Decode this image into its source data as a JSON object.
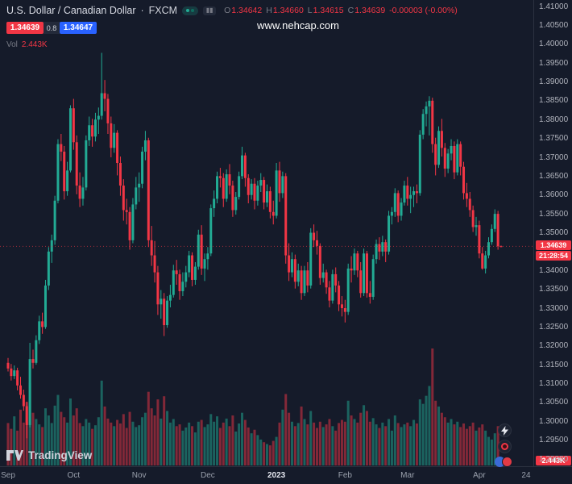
{
  "header": {
    "symbol_title": "U.S. Dollar / Canadian Dollar",
    "separator": "·",
    "exchange": "FXCM",
    "ohlc": {
      "o_label": "O",
      "o_value": "1.34642",
      "h_label": "H",
      "h_value": "1.34660",
      "l_label": "L",
      "l_value": "1.34615",
      "c_label": "C",
      "c_value": "1.34639",
      "change": "-0.00003 (-0.00%)"
    },
    "bid": "1.34639",
    "spread": "0.8",
    "ask": "1.34647",
    "vol_label": "Vol",
    "vol_value": "2.443K"
  },
  "watermark": "www.nehcap.com",
  "price_axis": {
    "ticks": [
      "1.41000",
      "1.40500",
      "1.40000",
      "1.39500",
      "1.39000",
      "1.38500",
      "1.38000",
      "1.37500",
      "1.37000",
      "1.36500",
      "1.36000",
      "1.35500",
      "1.35000",
      "1.34000",
      "1.33500",
      "1.33000",
      "1.32500",
      "1.32000",
      "1.31500",
      "1.31000",
      "1.30500",
      "1.30000",
      "1.29500",
      "1.29000"
    ],
    "last_price_label": "1.34639",
    "countdown": "21:28:54",
    "volume_badge": "2.443K"
  },
  "time_axis": {
    "ticks": [
      {
        "label": "Sep",
        "index": 0,
        "major": false
      },
      {
        "label": "Oct",
        "index": 21,
        "major": false
      },
      {
        "label": "Nov",
        "index": 42,
        "major": false
      },
      {
        "label": "Dec",
        "index": 64,
        "major": false
      },
      {
        "label": "2023",
        "index": 86,
        "major": true
      },
      {
        "label": "Feb",
        "index": 108,
        "major": false
      },
      {
        "label": "Mar",
        "index": 128,
        "major": false
      },
      {
        "label": "Apr",
        "index": 151,
        "major": false
      },
      {
        "label": "24",
        "index": 166,
        "major": false
      }
    ]
  },
  "footer": {
    "logo_text": "TradingView"
  },
  "colors": {
    "bg": "#151b2a",
    "up": "#22ab94",
    "down": "#f23645",
    "vol_up": "rgba(34,171,148,0.5)",
    "vol_down": "rgba(242,54,69,0.5)",
    "buy": "#2962ff",
    "sell": "#f23645"
  },
  "chart_data": {
    "type": "candlestick+volume",
    "title": "U.S. Dollar / Canadian Dollar · FXCM",
    "symbol": "USDCAD",
    "timeframe": "1D",
    "date_range": "Sep 2022 - Apr 2023",
    "ylim": [
      1.2883,
      1.41
    ],
    "price_step": 0.005,
    "last_price": 1.34639,
    "last_volume_k": 2.443,
    "candles_format": [
      "open",
      "high",
      "low",
      "close"
    ],
    "candles": [
      [
        1.3155,
        1.3168,
        1.3132,
        1.314
      ],
      [
        1.314,
        1.3152,
        1.3108,
        1.312
      ],
      [
        1.312,
        1.3148,
        1.3112,
        1.3135
      ],
      [
        1.3135,
        1.3142,
        1.3082,
        1.3095
      ],
      [
        1.3095,
        1.3118,
        1.306,
        1.307
      ],
      [
        1.307,
        1.3084,
        1.3028,
        1.304
      ],
      [
        1.304,
        1.3052,
        1.2955,
        1.299
      ],
      [
        1.299,
        1.3208,
        1.2984,
        1.3165
      ],
      [
        1.3165,
        1.319,
        1.314,
        1.3155
      ],
      [
        1.3155,
        1.3228,
        1.315,
        1.3215
      ],
      [
        1.3215,
        1.328,
        1.3205,
        1.3265
      ],
      [
        1.3265,
        1.3288,
        1.3232,
        1.325
      ],
      [
        1.325,
        1.3375,
        1.3245,
        1.336
      ],
      [
        1.336,
        1.3462,
        1.3348,
        1.345
      ],
      [
        1.345,
        1.3495,
        1.342,
        1.348
      ],
      [
        1.348,
        1.3598,
        1.3468,
        1.3585
      ],
      [
        1.3585,
        1.3748,
        1.3578,
        1.3735
      ],
      [
        1.3735,
        1.3762,
        1.369,
        1.3715
      ],
      [
        1.3715,
        1.373,
        1.3588,
        1.361
      ],
      [
        1.361,
        1.3688,
        1.3598,
        1.3665
      ],
      [
        1.3665,
        1.3838,
        1.366,
        1.383
      ],
      [
        1.383,
        1.3855,
        1.372,
        1.374
      ],
      [
        1.374,
        1.3758,
        1.3602,
        1.3625
      ],
      [
        1.3625,
        1.366,
        1.3568,
        1.359
      ],
      [
        1.359,
        1.3648,
        1.3572,
        1.362
      ],
      [
        1.362,
        1.3758,
        1.3612,
        1.3745
      ],
      [
        1.3745,
        1.3808,
        1.373,
        1.3785
      ],
      [
        1.3785,
        1.3802,
        1.3728,
        1.3755
      ],
      [
        1.3755,
        1.3818,
        1.3742,
        1.38
      ],
      [
        1.38,
        1.3832,
        1.3762,
        1.381
      ],
      [
        1.381,
        1.3977,
        1.38,
        1.387
      ],
      [
        1.387,
        1.3905,
        1.3822,
        1.3855
      ],
      [
        1.3855,
        1.3868,
        1.3762,
        1.379
      ],
      [
        1.379,
        1.3808,
        1.37,
        1.3725
      ],
      [
        1.3725,
        1.3788,
        1.3712,
        1.3765
      ],
      [
        1.3765,
        1.3772,
        1.3652,
        1.3685
      ],
      [
        1.3685,
        1.3702,
        1.3598,
        1.3625
      ],
      [
        1.3625,
        1.3642,
        1.3532,
        1.356
      ],
      [
        1.356,
        1.359,
        1.3522,
        1.3555
      ],
      [
        1.3555,
        1.3568,
        1.3455,
        1.348
      ],
      [
        1.348,
        1.3592,
        1.3472,
        1.3575
      ],
      [
        1.3575,
        1.3648,
        1.3562,
        1.362
      ],
      [
        1.362,
        1.366,
        1.3582,
        1.363
      ],
      [
        1.363,
        1.3728,
        1.3618,
        1.3715
      ],
      [
        1.3715,
        1.377,
        1.3692,
        1.3745
      ],
      [
        1.3745,
        1.3752,
        1.3462,
        1.348
      ],
      [
        1.348,
        1.3518,
        1.3412,
        1.344
      ],
      [
        1.344,
        1.3478,
        1.3368,
        1.3395
      ],
      [
        1.3395,
        1.3412,
        1.3282,
        1.331
      ],
      [
        1.331,
        1.3348,
        1.3272,
        1.3325
      ],
      [
        1.3325,
        1.334,
        1.3226,
        1.3255
      ],
      [
        1.3255,
        1.3332,
        1.3248,
        1.332
      ],
      [
        1.332,
        1.3362,
        1.3302,
        1.3335
      ],
      [
        1.3335,
        1.3415,
        1.3328,
        1.34
      ],
      [
        1.34,
        1.3428,
        1.3362,
        1.339
      ],
      [
        1.339,
        1.3402,
        1.3322,
        1.3345
      ],
      [
        1.3345,
        1.3395,
        1.3332,
        1.337
      ],
      [
        1.337,
        1.3412,
        1.3355,
        1.3395
      ],
      [
        1.3395,
        1.3452,
        1.3382,
        1.344
      ],
      [
        1.344,
        1.3448,
        1.3358,
        1.3375
      ],
      [
        1.3375,
        1.3422,
        1.3362,
        1.341
      ],
      [
        1.341,
        1.3508,
        1.3402,
        1.3495
      ],
      [
        1.3495,
        1.352,
        1.3388,
        1.3405
      ],
      [
        1.3405,
        1.3445,
        1.3372,
        1.343
      ],
      [
        1.343,
        1.3462,
        1.3402,
        1.3445
      ],
      [
        1.3445,
        1.3575,
        1.3438,
        1.3565
      ],
      [
        1.3565,
        1.3612,
        1.3542,
        1.359
      ],
      [
        1.359,
        1.3662,
        1.3578,
        1.365
      ],
      [
        1.365,
        1.3672,
        1.362,
        1.3645
      ],
      [
        1.3645,
        1.3658,
        1.3568,
        1.359
      ],
      [
        1.359,
        1.3668,
        1.3582,
        1.3655
      ],
      [
        1.3655,
        1.3682,
        1.3602,
        1.3625
      ],
      [
        1.3625,
        1.3638,
        1.3542,
        1.356
      ],
      [
        1.356,
        1.3608,
        1.3548,
        1.3595
      ],
      [
        1.3595,
        1.3662,
        1.3588,
        1.365
      ],
      [
        1.365,
        1.3728,
        1.3642,
        1.3705
      ],
      [
        1.3705,
        1.3712,
        1.3622,
        1.3645
      ],
      [
        1.3645,
        1.3655,
        1.3578,
        1.36
      ],
      [
        1.36,
        1.3642,
        1.3588,
        1.363
      ],
      [
        1.363,
        1.3645,
        1.3562,
        1.3585
      ],
      [
        1.3585,
        1.3638,
        1.3572,
        1.3625
      ],
      [
        1.3625,
        1.3658,
        1.3608,
        1.364
      ],
      [
        1.364,
        1.3648,
        1.3562,
        1.358
      ],
      [
        1.358,
        1.3628,
        1.3568,
        1.361
      ],
      [
        1.361,
        1.3622,
        1.3538,
        1.3555
      ],
      [
        1.3555,
        1.3585,
        1.3522,
        1.3545
      ],
      [
        1.3545,
        1.3685,
        1.3538,
        1.3665
      ],
      [
        1.3665,
        1.3688,
        1.3582,
        1.3605
      ],
      [
        1.3605,
        1.3662,
        1.3592,
        1.365
      ],
      [
        1.365,
        1.3658,
        1.3418,
        1.344
      ],
      [
        1.344,
        1.3472,
        1.3372,
        1.3395
      ],
      [
        1.3395,
        1.3448,
        1.3382,
        1.343
      ],
      [
        1.343,
        1.3442,
        1.3352,
        1.337
      ],
      [
        1.337,
        1.3418,
        1.3358,
        1.34
      ],
      [
        1.34,
        1.3412,
        1.3322,
        1.334
      ],
      [
        1.334,
        1.3412,
        1.3332,
        1.34
      ],
      [
        1.34,
        1.3422,
        1.3342,
        1.336
      ],
      [
        1.336,
        1.3512,
        1.3352,
        1.35
      ],
      [
        1.35,
        1.3522,
        1.3462,
        1.348
      ],
      [
        1.348,
        1.3505,
        1.3442,
        1.3465
      ],
      [
        1.3465,
        1.3472,
        1.3362,
        1.338
      ],
      [
        1.338,
        1.3418,
        1.3368,
        1.3395
      ],
      [
        1.3395,
        1.3402,
        1.3338,
        1.3355
      ],
      [
        1.3355,
        1.3372,
        1.3302,
        1.332
      ],
      [
        1.332,
        1.3402,
        1.3312,
        1.339
      ],
      [
        1.339,
        1.3408,
        1.3342,
        1.336
      ],
      [
        1.336,
        1.3372,
        1.3292,
        1.331
      ],
      [
        1.331,
        1.3332,
        1.3278,
        1.33
      ],
      [
        1.33,
        1.3322,
        1.3262,
        1.329
      ],
      [
        1.329,
        1.3418,
        1.3282,
        1.3405
      ],
      [
        1.3405,
        1.3438,
        1.3368,
        1.34
      ],
      [
        1.34,
        1.3458,
        1.3388,
        1.3445
      ],
      [
        1.3445,
        1.3452,
        1.3382,
        1.34
      ],
      [
        1.34,
        1.3422,
        1.3328,
        1.334
      ],
      [
        1.334,
        1.3458,
        1.3332,
        1.3445
      ],
      [
        1.3445,
        1.3452,
        1.3328,
        1.334
      ],
      [
        1.334,
        1.3372,
        1.3312,
        1.333
      ],
      [
        1.333,
        1.3442,
        1.3322,
        1.343
      ],
      [
        1.343,
        1.3482,
        1.3418,
        1.347
      ],
      [
        1.347,
        1.3488,
        1.3428,
        1.345
      ],
      [
        1.345,
        1.3492,
        1.3438,
        1.3475
      ],
      [
        1.3475,
        1.3482,
        1.3422,
        1.345
      ],
      [
        1.345,
        1.3558,
        1.3442,
        1.3545
      ],
      [
        1.3545,
        1.3568,
        1.3522,
        1.3555
      ],
      [
        1.3555,
        1.3618,
        1.3542,
        1.3605
      ],
      [
        1.3605,
        1.3612,
        1.3528,
        1.3545
      ],
      [
        1.3545,
        1.3592,
        1.3532,
        1.358
      ],
      [
        1.358,
        1.3638,
        1.3572,
        1.3625
      ],
      [
        1.3625,
        1.3648,
        1.3572,
        1.359
      ],
      [
        1.359,
        1.3622,
        1.3552,
        1.36
      ],
      [
        1.36,
        1.3622,
        1.3568,
        1.361
      ],
      [
        1.361,
        1.3628,
        1.3578,
        1.3605
      ],
      [
        1.3605,
        1.3772,
        1.3598,
        1.376
      ],
      [
        1.376,
        1.3828,
        1.3748,
        1.3815
      ],
      [
        1.3815,
        1.3848,
        1.3782,
        1.3835
      ],
      [
        1.3835,
        1.3862,
        1.3758,
        1.385
      ],
      [
        1.385,
        1.3858,
        1.3712,
        1.3735
      ],
      [
        1.3735,
        1.3752,
        1.3652,
        1.368
      ],
      [
        1.368,
        1.3782,
        1.3672,
        1.377
      ],
      [
        1.377,
        1.3802,
        1.3702,
        1.3725
      ],
      [
        1.3725,
        1.3738,
        1.3648,
        1.367
      ],
      [
        1.367,
        1.3722,
        1.3658,
        1.371
      ],
      [
        1.371,
        1.3748,
        1.3692,
        1.373
      ],
      [
        1.373,
        1.3742,
        1.3642,
        1.366
      ],
      [
        1.366,
        1.3748,
        1.3652,
        1.3735
      ],
      [
        1.3735,
        1.3742,
        1.3652,
        1.3675
      ],
      [
        1.3675,
        1.3688,
        1.3588,
        1.3605
      ],
      [
        1.3605,
        1.3632,
        1.3568,
        1.359
      ],
      [
        1.359,
        1.3608,
        1.3542,
        1.356
      ],
      [
        1.356,
        1.3572,
        1.3502,
        1.3515
      ],
      [
        1.3515,
        1.3542,
        1.3492,
        1.352
      ],
      [
        1.352,
        1.3532,
        1.3432,
        1.3445
      ],
      [
        1.3445,
        1.3462,
        1.3402,
        1.3405
      ],
      [
        1.3405,
        1.3452,
        1.3392,
        1.344
      ],
      [
        1.344,
        1.3488,
        1.3432,
        1.3475
      ],
      [
        1.3475,
        1.3522,
        1.3468,
        1.351
      ],
      [
        1.351,
        1.3562,
        1.3502,
        1.355
      ],
      [
        1.355,
        1.3558,
        1.3455,
        1.3464
      ],
      [
        1.34642,
        1.3466,
        1.34615,
        1.34639
      ]
    ],
    "volume_k": [
      95,
      82,
      110,
      78,
      125,
      96,
      142,
      185,
      118,
      104,
      92,
      86,
      128,
      112,
      95,
      134,
      158,
      120,
      108,
      96,
      150,
      112,
      128,
      95,
      88,
      104,
      96,
      82,
      90,
      108,
      190,
      132,
      105,
      96,
      88,
      102,
      94,
      115,
      84,
      120,
      98,
      86,
      90,
      108,
      118,
      165,
      128,
      112,
      148,
      105,
      155,
      122,
      96,
      104,
      88,
      92,
      78,
      85,
      96,
      88,
      74,
      98,
      102,
      86,
      92,
      115,
      98,
      110,
      84,
      96,
      105,
      88,
      112,
      76,
      94,
      118,
      102,
      85,
      72,
      80,
      68,
      58,
      52,
      48,
      45,
      55,
      64,
      96,
      125,
      160,
      118,
      98,
      88,
      95,
      132,
      104,
      92,
      122,
      96,
      84,
      98,
      86,
      92,
      104,
      88,
      78,
      95,
      102,
      98,
      145,
      112,
      104,
      96,
      118,
      135,
      122,
      98,
      106,
      92,
      84,
      96,
      88,
      104,
      78,
      112,
      95,
      86,
      92,
      96,
      88,
      102,
      94,
      148,
      138,
      156,
      178,
      262,
      145,
      132,
      118,
      108,
      96,
      104,
      92,
      98,
      86,
      94,
      82,
      88,
      96,
      78,
      85,
      92,
      78,
      64,
      58,
      72,
      88,
      2.443
    ]
  }
}
